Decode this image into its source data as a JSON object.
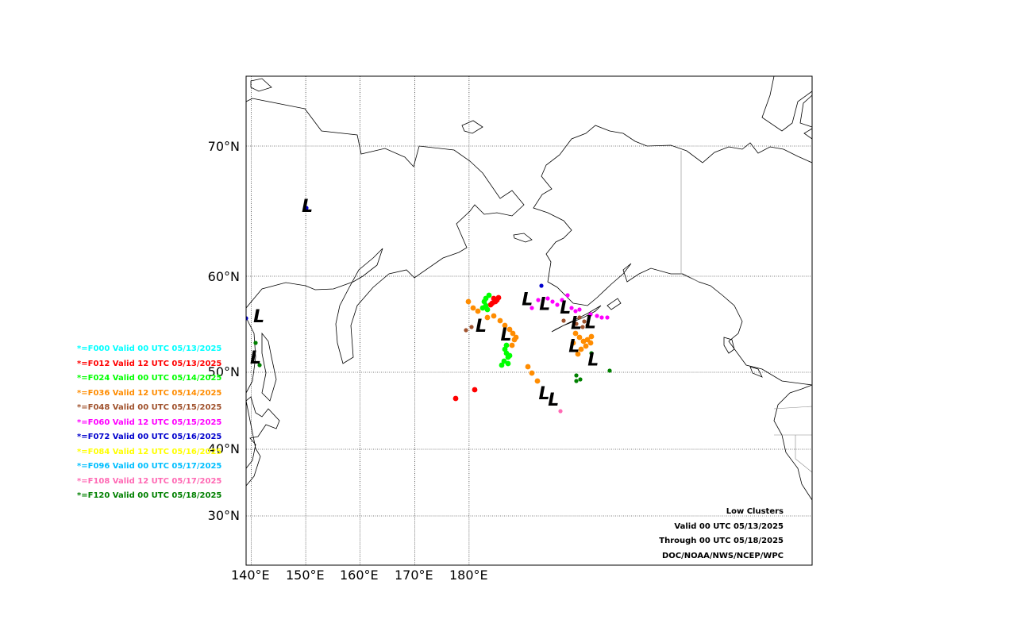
{
  "map": {
    "latitude_labels": [
      "70°N",
      "60°N",
      "50°N",
      "40°N",
      "30°N"
    ],
    "longitude_labels": [
      "140°E",
      "150°E",
      "160°E",
      "170°E",
      "180°E"
    ],
    "lows": [
      {
        "lon": 150.3,
        "lat": 65.3
      },
      {
        "lon": 141.4,
        "lat": 55.7
      },
      {
        "lon": 140.8,
        "lat": 51.4
      },
      {
        "lon": 182.2,
        "lat": 54.7
      },
      {
        "lon": 186.8,
        "lat": 53.8
      },
      {
        "lon": 190.7,
        "lat": 57.5
      },
      {
        "lon": 193.9,
        "lat": 57.0
      },
      {
        "lon": 197.7,
        "lat": 56.6
      },
      {
        "lon": 199.7,
        "lat": 55.0
      },
      {
        "lon": 202.3,
        "lat": 55.1
      },
      {
        "lon": 199.3,
        "lat": 52.6
      },
      {
        "lon": 202.8,
        "lat": 51.2
      },
      {
        "lon": 193.8,
        "lat": 47.1
      },
      {
        "lon": 195.5,
        "lat": 46.3
      }
    ]
  },
  "legend": [
    {
      "label": "*=F000 Valid 00 UTC 05/13/2025",
      "color": "#00ffff"
    },
    {
      "label": "*=F012 Valid 12 UTC 05/13/2025",
      "color": "#ff0000"
    },
    {
      "label": "*=F024 Valid 00 UTC 05/14/2025",
      "color": "#00ff00"
    },
    {
      "label": "*=F036 Valid 12 UTC 05/14/2025",
      "color": "#ff8c00"
    },
    {
      "label": "*=F048 Valid 00 UTC 05/15/2025",
      "color": "#a0522d"
    },
    {
      "label": "*=F060 Valid 12 UTC 05/15/2025",
      "color": "#ff00ff"
    },
    {
      "label": "*=F072 Valid 00 UTC 05/16/2025",
      "color": "#0000cd"
    },
    {
      "label": "*=F084 Valid 12 UTC 05/16/2025",
      "color": "#ffff00"
    },
    {
      "label": "*=F096 Valid 00 UTC 05/17/2025",
      "color": "#00bfff"
    },
    {
      "label": "*=F108 Valid 12 UTC 05/17/2025",
      "color": "#ff69b4"
    },
    {
      "label": "*=F120 Valid 00 UTC 05/18/2025",
      "color": "#008000"
    }
  ],
  "info": {
    "title": "Low Clusters",
    "valid": "Valid 00 UTC 05/13/2025",
    "through": "Through 00 UTC 05/18/2025",
    "credit": "DOC/NOAA/NWS/NCEP/WPC"
  }
}
